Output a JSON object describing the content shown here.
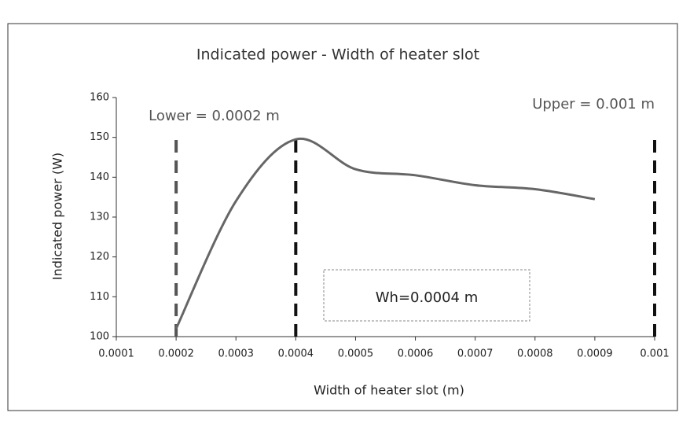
{
  "chart_data": {
    "type": "line",
    "title": "Indicated power - Width of heater slot",
    "x_label": "Width of heater slot (m)",
    "y_label": "Indicated power (W)",
    "x": [
      0.0002,
      0.0003,
      0.0004,
      0.0005,
      0.0006,
      0.0007,
      0.0008,
      0.0009
    ],
    "series": [
      {
        "name": "Indicated power",
        "color": "#666666",
        "values": [
          102,
          134,
          149.5,
          142,
          140.5,
          138,
          137,
          134.5
        ]
      }
    ],
    "xlim": [
      0.0001,
      0.001
    ],
    "xticks": [
      0.0001,
      0.0002,
      0.0003,
      0.0004,
      0.0005,
      0.0006,
      0.0007,
      0.0008,
      0.0009,
      0.001
    ],
    "ylim": [
      100,
      160
    ],
    "yticks": [
      100,
      110,
      120,
      130,
      140,
      150,
      160
    ],
    "reference_lines": [
      {
        "x": 0.0002,
        "label": "Lower = 0.0002 m",
        "color": "#555555"
      },
      {
        "x": 0.0004,
        "label": "Wh=0.0004 m",
        "color": "#111111"
      },
      {
        "x": 0.001,
        "label": "Upper = 0.001 m",
        "color": "#111111"
      }
    ]
  }
}
